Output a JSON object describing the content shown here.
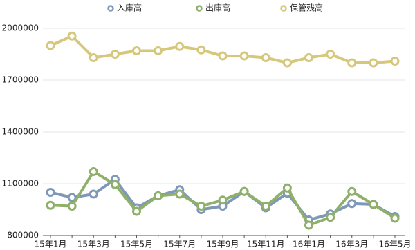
{
  "chart_data": {
    "type": "line",
    "categories": [
      "15年1月",
      null,
      "15年3月",
      null,
      "15年5月",
      null,
      "15年7月",
      null,
      "15年9月",
      null,
      "15年11月",
      null,
      "16年1月",
      null,
      "16年3月",
      null,
      "16年5月"
    ],
    "series": [
      {
        "name": "入庫高",
        "color": "#7f98b8",
        "values": [
          1050000,
          1020000,
          1040000,
          1125000,
          960000,
          1030000,
          1065000,
          950000,
          970000,
          1055000,
          960000,
          1045000,
          890000,
          925000,
          985000,
          980000,
          910000
        ]
      },
      {
        "name": "出庫高",
        "color": "#8fb06a",
        "values": [
          975000,
          970000,
          1170000,
          1095000,
          940000,
          1030000,
          1040000,
          970000,
          1005000,
          1055000,
          970000,
          1075000,
          860000,
          905000,
          1055000,
          980000,
          900000
        ]
      },
      {
        "name": "保管残高",
        "color": "#d6c77a",
        "values": [
          1900000,
          1955000,
          1830000,
          1850000,
          1870000,
          1870000,
          1895000,
          1875000,
          1840000,
          1840000,
          1830000,
          1800000,
          1830000,
          1850000,
          1800000,
          1800000,
          1810000
        ]
      }
    ],
    "ylim": [
      800000,
      2000000
    ],
    "yticks": [
      800000,
      1100000,
      1400000,
      1700000,
      2000000
    ],
    "grid": true,
    "legend": "top"
  }
}
